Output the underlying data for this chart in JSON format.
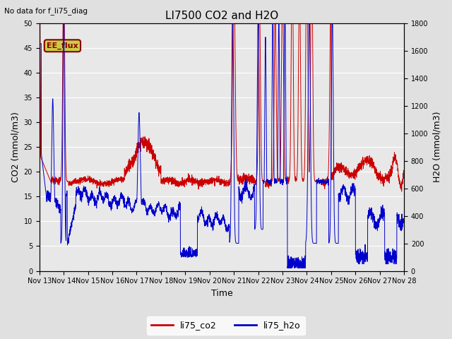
{
  "title": "LI7500 CO2 and H2O",
  "top_left_text": "No data for f_li75_diag",
  "annotation_text": "EE_flux",
  "xlabel": "Time",
  "ylabel_left": "CO2 (mmol/m3)",
  "ylabel_right": "H2O (mmol/m3)",
  "ylim_left": [
    0,
    50
  ],
  "ylim_right": [
    0,
    1800
  ],
  "yticks_left": [
    0,
    5,
    10,
    15,
    20,
    25,
    30,
    35,
    40,
    45,
    50
  ],
  "yticks_right": [
    0,
    200,
    400,
    600,
    800,
    1000,
    1200,
    1400,
    1600,
    1800
  ],
  "xtick_labels": [
    "Nov 13",
    "Nov 14",
    "Nov 15",
    "Nov 16",
    "Nov 17",
    "Nov 18",
    "Nov 19",
    "Nov 20",
    "Nov 21",
    "Nov 22",
    "Nov 23",
    "Nov 24",
    "Nov 25",
    "Nov 26",
    "Nov 27",
    "Nov 28"
  ],
  "legend_entries": [
    "li75_co2",
    "li75_h2o"
  ],
  "line_colors": [
    "#cc0000",
    "#0000cc"
  ],
  "bg_color": "#e0e0e0",
  "plot_bg_color": "#e8e8e8",
  "grid_color": "#ffffff",
  "annotation_bg": "#cccc44",
  "annotation_fg": "#880000",
  "figsize": [
    6.4,
    4.8
  ],
  "dpi": 100
}
